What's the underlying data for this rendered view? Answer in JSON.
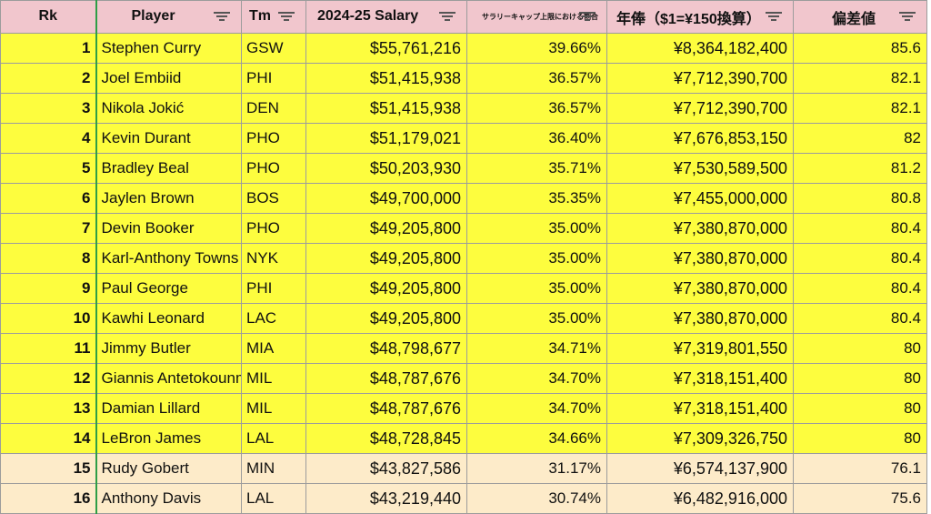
{
  "headers": {
    "rk": "Rk",
    "player": "Player",
    "tm": "Tm",
    "salary": "2024-25 Salary",
    "cap_pct": "サラリーキャップ上限における割合",
    "yen": "年俸（$1=¥150換算）",
    "deviation": "偏差値"
  },
  "filter_icon": "filter-icon",
  "colors": {
    "header_bg": "#f1c6cd",
    "highlight_bg": "#fdfd3e",
    "plain_bg": "#fdebc9",
    "selection_border": "#2e9e46"
  },
  "rows": [
    {
      "rk": "1",
      "player": "Stephen Curry",
      "tm": "GSW",
      "salary": "$55,761,216",
      "cap_pct": "39.66%",
      "yen": "¥8,364,182,400",
      "deviation": "85.6",
      "highlight": true
    },
    {
      "rk": "2",
      "player": "Joel Embiid",
      "tm": "PHI",
      "salary": "$51,415,938",
      "cap_pct": "36.57%",
      "yen": "¥7,712,390,700",
      "deviation": "82.1",
      "highlight": true
    },
    {
      "rk": "3",
      "player": "Nikola Jokić",
      "tm": "DEN",
      "salary": "$51,415,938",
      "cap_pct": "36.57%",
      "yen": "¥7,712,390,700",
      "deviation": "82.1",
      "highlight": true
    },
    {
      "rk": "4",
      "player": "Kevin Durant",
      "tm": "PHO",
      "salary": "$51,179,021",
      "cap_pct": "36.40%",
      "yen": "¥7,676,853,150",
      "deviation": "82",
      "highlight": true
    },
    {
      "rk": "5",
      "player": "Bradley Beal",
      "tm": "PHO",
      "salary": "$50,203,930",
      "cap_pct": "35.71%",
      "yen": "¥7,530,589,500",
      "deviation": "81.2",
      "highlight": true
    },
    {
      "rk": "6",
      "player": "Jaylen Brown",
      "tm": "BOS",
      "salary": "$49,700,000",
      "cap_pct": "35.35%",
      "yen": "¥7,455,000,000",
      "deviation": "80.8",
      "highlight": true
    },
    {
      "rk": "7",
      "player": "Devin Booker",
      "tm": "PHO",
      "salary": "$49,205,800",
      "cap_pct": "35.00%",
      "yen": "¥7,380,870,000",
      "deviation": "80.4",
      "highlight": true
    },
    {
      "rk": "8",
      "player": "Karl-Anthony Towns",
      "tm": "NYK",
      "salary": "$49,205,800",
      "cap_pct": "35.00%",
      "yen": "¥7,380,870,000",
      "deviation": "80.4",
      "highlight": true
    },
    {
      "rk": "9",
      "player": "Paul George",
      "tm": "PHI",
      "salary": "$49,205,800",
      "cap_pct": "35.00%",
      "yen": "¥7,380,870,000",
      "deviation": "80.4",
      "highlight": true
    },
    {
      "rk": "10",
      "player": "Kawhi Leonard",
      "tm": "LAC",
      "salary": "$49,205,800",
      "cap_pct": "35.00%",
      "yen": "¥7,380,870,000",
      "deviation": "80.4",
      "highlight": true
    },
    {
      "rk": "11",
      "player": "Jimmy Butler",
      "tm": "MIA",
      "salary": "$48,798,677",
      "cap_pct": "34.71%",
      "yen": "¥7,319,801,550",
      "deviation": "80",
      "highlight": true
    },
    {
      "rk": "12",
      "player": "Giannis Antetokounmpo",
      "tm": "MIL",
      "salary": "$48,787,676",
      "cap_pct": "34.70%",
      "yen": "¥7,318,151,400",
      "deviation": "80",
      "highlight": true
    },
    {
      "rk": "13",
      "player": "Damian Lillard",
      "tm": "MIL",
      "salary": "$48,787,676",
      "cap_pct": "34.70%",
      "yen": "¥7,318,151,400",
      "deviation": "80",
      "highlight": true
    },
    {
      "rk": "14",
      "player": "LeBron James",
      "tm": "LAL",
      "salary": "$48,728,845",
      "cap_pct": "34.66%",
      "yen": "¥7,309,326,750",
      "deviation": "80",
      "highlight": true
    },
    {
      "rk": "15",
      "player": "Rudy Gobert",
      "tm": "MIN",
      "salary": "$43,827,586",
      "cap_pct": "31.17%",
      "yen": "¥6,574,137,900",
      "deviation": "76.1",
      "highlight": false
    },
    {
      "rk": "16",
      "player": "Anthony Davis",
      "tm": "LAL",
      "salary": "$43,219,440",
      "cap_pct": "30.74%",
      "yen": "¥6,482,916,000",
      "deviation": "75.6",
      "highlight": false
    }
  ]
}
